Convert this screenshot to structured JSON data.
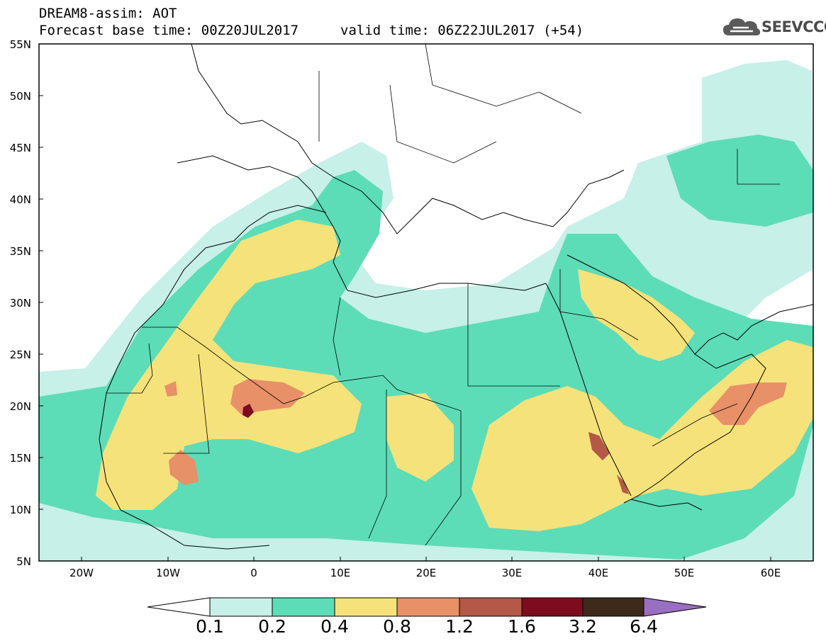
{
  "title": {
    "line1": "DREAM8-assim: AOT",
    "line2": "Forecast base time: 00Z20JUL2017",
    "line3": "valid time: 06Z22JUL2017 (+54)"
  },
  "logo": {
    "text": "SEEVCCC",
    "icon": "cloud-icon"
  },
  "map": {
    "projection": "lat-lon",
    "lon_range": [
      -25,
      65
    ],
    "lat_range": [
      5,
      55
    ],
    "lat_ticks": [
      "55N",
      "50N",
      "45N",
      "40N",
      "35N",
      "30N",
      "25N",
      "20N",
      "15N",
      "10N",
      "5N"
    ],
    "lon_ticks": [
      "20W",
      "10W",
      "0",
      "10E",
      "20E",
      "30E",
      "40E",
      "50E",
      "60E"
    ]
  },
  "colorbar": {
    "levels": [
      "0.1",
      "0.2",
      "0.4",
      "0.8",
      "1.2",
      "1.6",
      "3.2",
      "6.4"
    ],
    "colors": [
      "#c6f0e8",
      "#5ddcb8",
      "#f6e27a",
      "#e89068",
      "#b45848",
      "#7c0c1e",
      "#3e2a1a",
      "#9a6ec0"
    ]
  }
}
